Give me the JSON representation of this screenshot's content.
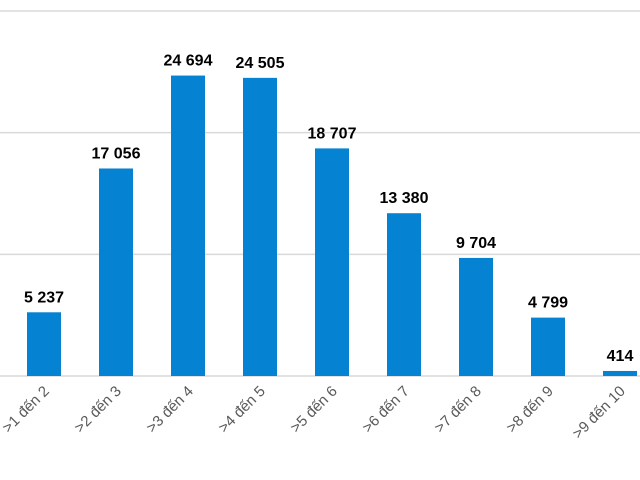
{
  "chart_data": {
    "type": "bar",
    "title": "",
    "xlabel": "",
    "ylabel": "",
    "categories": [
      ">1 đến 2",
      ">2 đến 3",
      ">3 đến 4",
      ">4 đến 5",
      ">5 đến 6",
      ">6 đến 7",
      ">7 đến 8",
      ">8 đến 9",
      ">9 đến 10"
    ],
    "values": [
      5237,
      17056,
      24694,
      24505,
      18707,
      13380,
      9704,
      4799,
      414
    ],
    "data_labels": [
      "5 237",
      "17 056",
      "24 694",
      "24 505",
      "18 707",
      "13 380",
      "9 704",
      "4 799",
      "414"
    ],
    "ylim": [
      0,
      30000
    ],
    "yticks": [
      0,
      10000,
      20000,
      30000
    ],
    "grid": true,
    "bar_color": "#0582d2",
    "legend": "none"
  }
}
